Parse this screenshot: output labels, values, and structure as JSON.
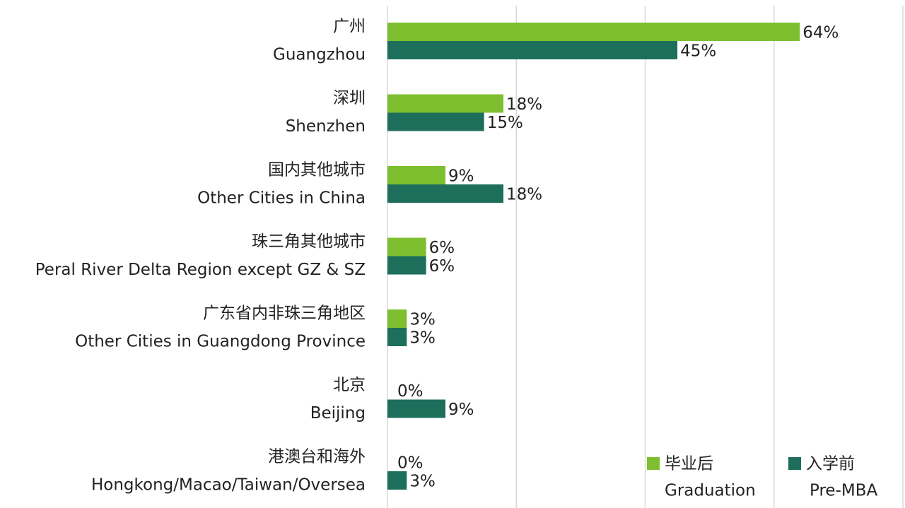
{
  "chart_data": {
    "type": "hbar",
    "categories": [
      [
        "广州",
        "Guangzhou"
      ],
      [
        "深圳",
        "Shenzhen"
      ],
      [
        "国内其他城市",
        "Other Cities in China"
      ],
      [
        "珠三角其他城市",
        "Peral River Delta Region except GZ & SZ"
      ],
      [
        "广东省内非珠三角地区",
        "Other Cities in Guangdong Province"
      ],
      [
        "北京",
        "Beijing"
      ],
      [
        "港澳台和海外",
        "Hongkong/Macao/Taiwan/Oversea"
      ]
    ],
    "series": [
      {
        "name": [
          "毕业后",
          "Graduation"
        ],
        "color": "#7dbf2e",
        "values": [
          64,
          18,
          9,
          6,
          3,
          0,
          0
        ],
        "value_labels": [
          "64%",
          "18%",
          "9%",
          "6%",
          "3%",
          "0%",
          "0%"
        ]
      },
      {
        "name": [
          "入学前",
          "Pre-MBA"
        ],
        "color": "#1e6e5c",
        "values": [
          45,
          15,
          18,
          6,
          3,
          9,
          3
        ],
        "value_labels": [
          "45%",
          "15%",
          "18%",
          "6%",
          "3%",
          "9%",
          "3%"
        ]
      }
    ],
    "xlim": [
      0,
      80
    ],
    "xticks": [
      0,
      20,
      40,
      60,
      80
    ],
    "grid": true,
    "legend": "bottom-right"
  }
}
